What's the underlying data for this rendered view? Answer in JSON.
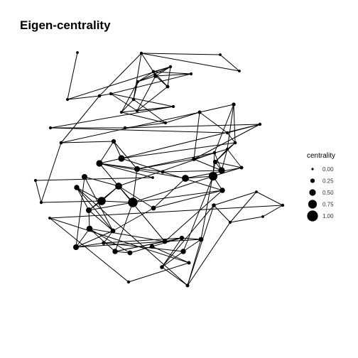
{
  "title": "Eigen-centrality",
  "legend": {
    "title": "centrality",
    "items": [
      "0.00",
      "0.25",
      "0.50",
      "0.75",
      "1.00"
    ]
  },
  "graph": {
    "nodes": [
      {
        "id": 0,
        "c": 0.05
      },
      {
        "id": 1,
        "c": 0.1
      },
      {
        "id": 2,
        "c": 0.12
      },
      {
        "id": 3,
        "c": 0.1
      },
      {
        "id": 4,
        "c": 0.05
      },
      {
        "id": 5,
        "c": 0.08
      },
      {
        "id": 6,
        "c": 0.05
      },
      {
        "id": 7,
        "c": 0.08
      },
      {
        "id": 8,
        "c": 0.12
      },
      {
        "id": 9,
        "c": 0.2
      },
      {
        "id": 10,
        "c": 0.08
      },
      {
        "id": 11,
        "c": 0.15
      },
      {
        "id": 12,
        "c": 0.12
      },
      {
        "id": 13,
        "c": 0.1
      },
      {
        "id": 14,
        "c": 0.08
      },
      {
        "id": 15,
        "c": 0.1
      },
      {
        "id": 16,
        "c": 0.08
      },
      {
        "id": 17,
        "c": 0.08
      },
      {
        "id": 18,
        "c": 0.18
      },
      {
        "id": 19,
        "c": 0.08
      },
      {
        "id": 20,
        "c": 0.1
      },
      {
        "id": 21,
        "c": 0.15
      },
      {
        "id": 22,
        "c": 0.1
      },
      {
        "id": 23,
        "c": 0.1
      },
      {
        "id": 24,
        "c": 0.12
      },
      {
        "id": 25,
        "c": 0.25
      },
      {
        "id": 26,
        "c": 0.5
      },
      {
        "id": 27,
        "c": 0.12
      },
      {
        "id": 28,
        "c": 0.4
      },
      {
        "id": 29,
        "c": 0.5
      },
      {
        "id": 30,
        "c": 0.15
      },
      {
        "id": 31,
        "c": 0.05
      },
      {
        "id": 32,
        "c": 0.2
      },
      {
        "id": 33,
        "c": 0.12
      },
      {
        "id": 34,
        "c": 0.5
      },
      {
        "id": 35,
        "c": 0.08
      },
      {
        "id": 36,
        "c": 0.25
      },
      {
        "id": 37,
        "c": 0.15
      },
      {
        "id": 38,
        "c": 0.55
      },
      {
        "id": 39,
        "c": 0.75
      },
      {
        "id": 40,
        "c": 0.35
      },
      {
        "id": 41,
        "c": 0.85
      },
      {
        "id": 42,
        "c": 0.3
      },
      {
        "id": 43,
        "c": 0.08
      },
      {
        "id": 44,
        "c": 0.1
      },
      {
        "id": 45,
        "c": 0.7
      },
      {
        "id": 46,
        "c": 0.55
      },
      {
        "id": 47,
        "c": 0.4
      },
      {
        "id": 48,
        "c": 0.35
      },
      {
        "id": 49,
        "c": 0.4
      },
      {
        "id": 50,
        "c": 0.3
      },
      {
        "id": 51,
        "c": 0.45
      },
      {
        "id": 52,
        "c": 0.2
      },
      {
        "id": 53,
        "c": 0.4
      },
      {
        "id": 54,
        "c": 0.3
      },
      {
        "id": 55,
        "c": 0.35
      },
      {
        "id": 56,
        "c": 0.3
      },
      {
        "id": 57,
        "c": 0.35
      },
      {
        "id": 58,
        "c": 0.25
      },
      {
        "id": 59,
        "c": 0.25
      },
      {
        "id": 60,
        "c": 0.3
      },
      {
        "id": 61,
        "c": 0.2
      },
      {
        "id": 62,
        "c": 0.15
      },
      {
        "id": 63,
        "c": 0.1
      },
      {
        "id": 64,
        "c": 0.15
      },
      {
        "id": 65,
        "c": 0.2
      },
      {
        "id": 66,
        "c": 0.05
      },
      {
        "id": 67,
        "c": 0.05
      },
      {
        "id": 68,
        "c": 0.08
      },
      {
        "id": 69,
        "c": 0.05
      },
      {
        "id": 70,
        "c": 0.1
      }
    ],
    "edges": [
      [
        0,
        7
      ],
      [
        7,
        3
      ],
      [
        7,
        12
      ],
      [
        1,
        2
      ],
      [
        1,
        4
      ],
      [
        1,
        6
      ],
      [
        1,
        8
      ],
      [
        1,
        12
      ],
      [
        2,
        3
      ],
      [
        2,
        5
      ],
      [
        2,
        9
      ],
      [
        2,
        11
      ],
      [
        2,
        10
      ],
      [
        3,
        5
      ],
      [
        3,
        9
      ],
      [
        3,
        11
      ],
      [
        4,
        6
      ],
      [
        5,
        8
      ],
      [
        5,
        9
      ],
      [
        5,
        14
      ],
      [
        8,
        14
      ],
      [
        8,
        17
      ],
      [
        9,
        10
      ],
      [
        9,
        11
      ],
      [
        9,
        15
      ],
      [
        10,
        13
      ],
      [
        11,
        15
      ],
      [
        12,
        13
      ],
      [
        12,
        24
      ],
      [
        13,
        16
      ],
      [
        13,
        15
      ],
      [
        14,
        16
      ],
      [
        14,
        17
      ],
      [
        15,
        16
      ],
      [
        16,
        19
      ],
      [
        17,
        20
      ],
      [
        17,
        21
      ],
      [
        18,
        21
      ],
      [
        18,
        27
      ],
      [
        18,
        35
      ],
      [
        19,
        20
      ],
      [
        19,
        22
      ],
      [
        20,
        23
      ],
      [
        21,
        24
      ],
      [
        21,
        22
      ],
      [
        22,
        23
      ],
      [
        22,
        27
      ],
      [
        23,
        26
      ],
      [
        24,
        25
      ],
      [
        24,
        44
      ],
      [
        25,
        26
      ],
      [
        25,
        29
      ],
      [
        25,
        28
      ],
      [
        26,
        29
      ],
      [
        26,
        30
      ],
      [
        26,
        27
      ],
      [
        27,
        35
      ],
      [
        28,
        32
      ],
      [
        28,
        33
      ],
      [
        28,
        41
      ],
      [
        29,
        30
      ],
      [
        29,
        31
      ],
      [
        29,
        38
      ],
      [
        30,
        34
      ],
      [
        30,
        40
      ],
      [
        31,
        43
      ],
      [
        32,
        34
      ],
      [
        32,
        35
      ],
      [
        33,
        34
      ],
      [
        33,
        39
      ],
      [
        34,
        35
      ],
      [
        34,
        36
      ],
      [
        35,
        36
      ],
      [
        35,
        37
      ],
      [
        36,
        37
      ],
      [
        37,
        38
      ],
      [
        37,
        39
      ],
      [
        38,
        39
      ],
      [
        38,
        42
      ],
      [
        39,
        40
      ],
      [
        39,
        41
      ],
      [
        40,
        41
      ],
      [
        40,
        42
      ],
      [
        41,
        45
      ],
      [
        41,
        46
      ],
      [
        41,
        47
      ],
      [
        42,
        46
      ],
      [
        43,
        44
      ],
      [
        44,
        45
      ],
      [
        45,
        46
      ],
      [
        45,
        47
      ],
      [
        45,
        48
      ],
      [
        46,
        47
      ],
      [
        46,
        49
      ],
      [
        47,
        48
      ],
      [
        47,
        50
      ],
      [
        47,
        51
      ],
      [
        48,
        50
      ],
      [
        49,
        50
      ],
      [
        49,
        53
      ],
      [
        50,
        52
      ],
      [
        50,
        53
      ],
      [
        51,
        53
      ],
      [
        51,
        54
      ],
      [
        51,
        55
      ],
      [
        51,
        56
      ],
      [
        52,
        53
      ],
      [
        52,
        57
      ],
      [
        53,
        56
      ],
      [
        54,
        55
      ],
      [
        54,
        58
      ],
      [
        55,
        56
      ],
      [
        55,
        59
      ],
      [
        56,
        60
      ],
      [
        57,
        60
      ],
      [
        57,
        61
      ],
      [
        58,
        59
      ],
      [
        58,
        62
      ],
      [
        59,
        60
      ],
      [
        59,
        61
      ],
      [
        60,
        64
      ],
      [
        61,
        64
      ],
      [
        61,
        65
      ],
      [
        62,
        63
      ],
      [
        62,
        67
      ],
      [
        63,
        67
      ],
      [
        64,
        65
      ],
      [
        64,
        68
      ],
      [
        65,
        68
      ],
      [
        65,
        66
      ],
      [
        66,
        68
      ],
      [
        67,
        70
      ],
      [
        68,
        69
      ],
      [
        69,
        70
      ],
      [
        70,
        66
      ],
      [
        36,
        60
      ],
      [
        29,
        56
      ],
      [
        41,
        55
      ],
      [
        42,
        50
      ],
      [
        23,
        32
      ],
      [
        21,
        32
      ],
      [
        27,
        36
      ],
      [
        18,
        33
      ],
      [
        40,
        56
      ],
      [
        39,
        57
      ],
      [
        33,
        46
      ],
      [
        48,
        64
      ],
      [
        52,
        59
      ]
    ]
  }
}
